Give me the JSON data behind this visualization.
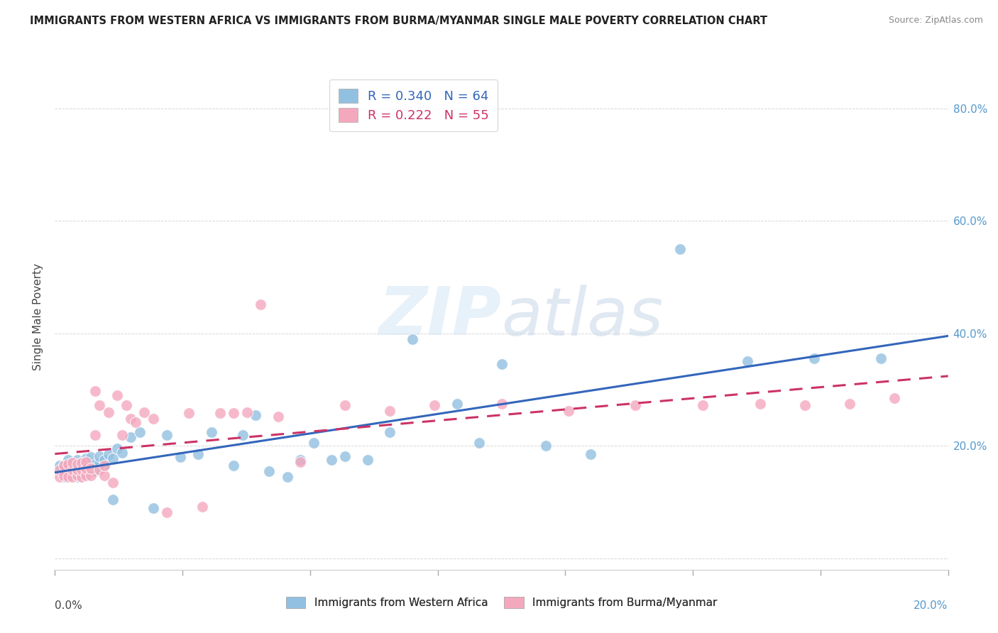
{
  "title": "IMMIGRANTS FROM WESTERN AFRICA VS IMMIGRANTS FROM BURMA/MYANMAR SINGLE MALE POVERTY CORRELATION CHART",
  "source": "Source: ZipAtlas.com",
  "ylabel": "Single Male Poverty",
  "yticks": [
    0.0,
    0.2,
    0.4,
    0.6,
    0.8
  ],
  "ytick_labels": [
    "",
    "20.0%",
    "40.0%",
    "60.0%",
    "80.0%"
  ],
  "xlim": [
    0.0,
    0.2
  ],
  "ylim": [
    -0.02,
    0.88
  ],
  "blue_R": 0.34,
  "blue_N": 64,
  "pink_R": 0.222,
  "pink_N": 55,
  "blue_color": "#92c0e0",
  "pink_color": "#f4a8be",
  "blue_line_color": "#3366bb",
  "pink_line_color": "#cc3366",
  "watermark_zip": "ZIP",
  "watermark_atlas": "atlas",
  "blue_x": [
    0.001,
    0.001,
    0.002,
    0.002,
    0.003,
    0.003,
    0.003,
    0.004,
    0.004,
    0.004,
    0.005,
    0.005,
    0.005,
    0.005,
    0.006,
    0.006,
    0.006,
    0.007,
    0.007,
    0.007,
    0.007,
    0.008,
    0.008,
    0.008,
    0.009,
    0.009,
    0.01,
    0.01,
    0.01,
    0.011,
    0.011,
    0.012,
    0.013,
    0.013,
    0.014,
    0.015,
    0.017,
    0.019,
    0.022,
    0.025,
    0.028,
    0.032,
    0.035,
    0.04,
    0.042,
    0.045,
    0.048,
    0.052,
    0.055,
    0.058,
    0.062,
    0.065,
    0.07,
    0.075,
    0.08,
    0.09,
    0.095,
    0.1,
    0.11,
    0.12,
    0.14,
    0.155,
    0.17,
    0.185
  ],
  "blue_y": [
    0.155,
    0.165,
    0.145,
    0.165,
    0.155,
    0.17,
    0.175,
    0.15,
    0.16,
    0.17,
    0.145,
    0.155,
    0.165,
    0.175,
    0.15,
    0.16,
    0.17,
    0.155,
    0.163,
    0.17,
    0.178,
    0.16,
    0.17,
    0.18,
    0.155,
    0.168,
    0.158,
    0.17,
    0.182,
    0.165,
    0.175,
    0.185,
    0.105,
    0.178,
    0.195,
    0.188,
    0.215,
    0.225,
    0.09,
    0.22,
    0.18,
    0.185,
    0.225,
    0.165,
    0.22,
    0.255,
    0.155,
    0.145,
    0.175,
    0.205,
    0.175,
    0.182,
    0.175,
    0.225,
    0.39,
    0.275,
    0.205,
    0.345,
    0.2,
    0.185,
    0.55,
    0.35,
    0.355,
    0.355
  ],
  "pink_x": [
    0.001,
    0.001,
    0.002,
    0.002,
    0.003,
    0.003,
    0.004,
    0.004,
    0.004,
    0.005,
    0.005,
    0.005,
    0.006,
    0.006,
    0.006,
    0.007,
    0.007,
    0.007,
    0.008,
    0.008,
    0.009,
    0.009,
    0.01,
    0.01,
    0.011,
    0.011,
    0.012,
    0.013,
    0.014,
    0.015,
    0.016,
    0.017,
    0.018,
    0.02,
    0.022,
    0.025,
    0.03,
    0.033,
    0.037,
    0.04,
    0.043,
    0.046,
    0.05,
    0.055,
    0.065,
    0.075,
    0.085,
    0.1,
    0.115,
    0.13,
    0.145,
    0.158,
    0.168,
    0.178,
    0.188
  ],
  "pink_y": [
    0.145,
    0.158,
    0.148,
    0.165,
    0.145,
    0.168,
    0.145,
    0.158,
    0.17,
    0.148,
    0.158,
    0.168,
    0.145,
    0.158,
    0.17,
    0.148,
    0.16,
    0.172,
    0.148,
    0.16,
    0.22,
    0.298,
    0.158,
    0.272,
    0.148,
    0.165,
    0.26,
    0.135,
    0.29,
    0.22,
    0.272,
    0.248,
    0.242,
    0.26,
    0.248,
    0.082,
    0.258,
    0.092,
    0.258,
    0.258,
    0.26,
    0.452,
    0.252,
    0.172,
    0.272,
    0.262,
    0.272,
    0.275,
    0.262,
    0.272,
    0.272,
    0.275,
    0.272,
    0.275,
    0.285
  ]
}
